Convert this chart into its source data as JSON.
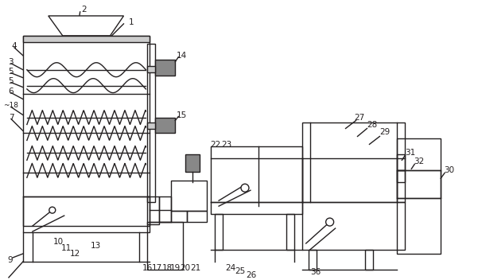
{
  "bg_color": "#ffffff",
  "line_color": "#231f20",
  "lw": 1.0,
  "fig_w": 6.01,
  "fig_h": 3.52,
  "dpi": 100,
  "gray_fill": "#888888",
  "lgray_fill": "#aaaaaa"
}
